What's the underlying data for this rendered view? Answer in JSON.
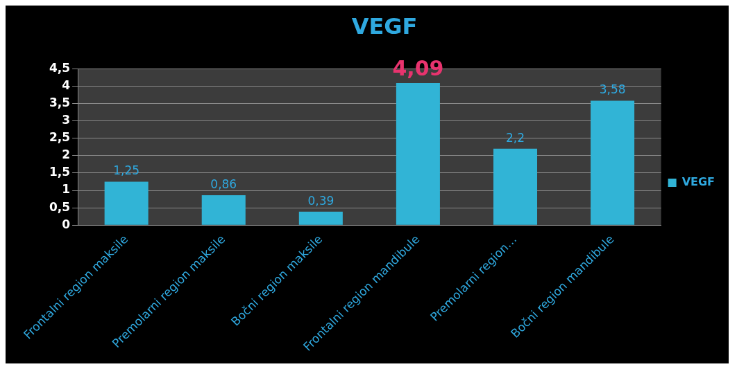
{
  "chart_data": {
    "type": "bar",
    "title": "VEGF",
    "categories": [
      "Frontalni region maksile",
      "Premolarni region maksile",
      "Bočni region maksile",
      "Frontalni region mandibule",
      "Premolarni region…",
      "Bočni region mandibule"
    ],
    "series": [
      {
        "name": "VEGF",
        "color": "#31b4d6",
        "values": [
          1.25,
          0.86,
          0.39,
          4.09,
          2.2,
          3.58
        ],
        "value_labels": [
          "1,25",
          "0,86",
          "0,39",
          null,
          "2,2",
          "3,58"
        ]
      }
    ],
    "annotations": [
      {
        "text": "4,09",
        "x": "Frontalni region mandibule",
        "y": 4.09
      }
    ],
    "ylim": [
      0,
      4.5
    ],
    "yticks": [
      0,
      {
        "value": 0.5,
        "label": "0,5"
      },
      1,
      {
        "value": 1.5,
        "label": "1,5"
      },
      2,
      {
        "value": 2.5,
        "label": "2,5"
      },
      3,
      {
        "value": 3.5,
        "label": "3,5"
      },
      4,
      {
        "value": 4.5,
        "label": "4,5"
      }
    ],
    "grid": "y",
    "legend": "right"
  }
}
